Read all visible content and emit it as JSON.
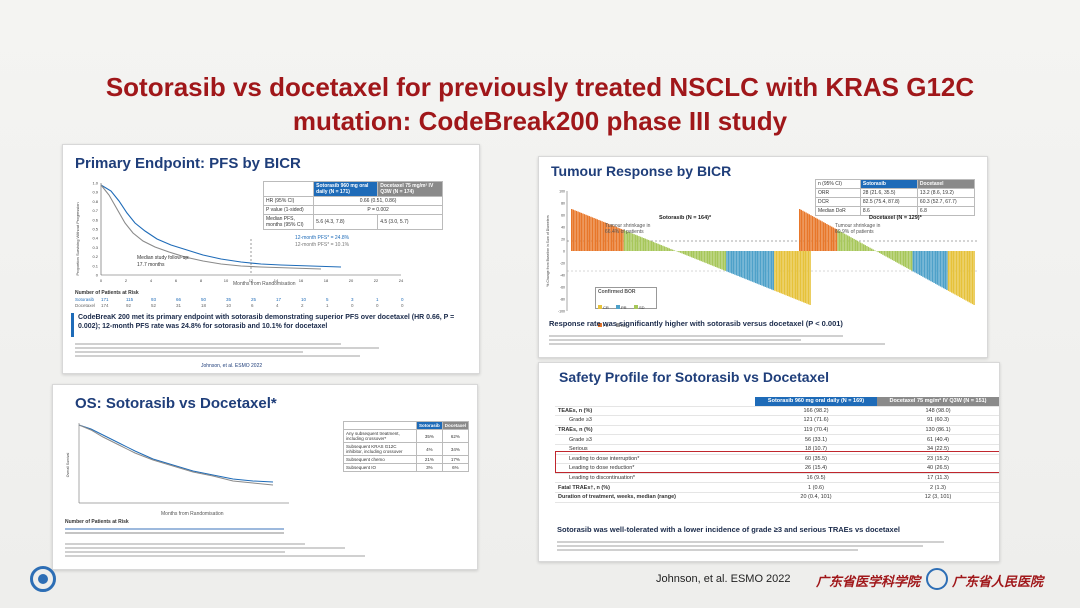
{
  "title_line1": "Sotorasib vs docetaxel for previously treated NSCLC with KRAS G12C",
  "title_line2": "mutation: CodeBreak200 phase III study",
  "pfs": {
    "title": "Primary Endpoint: PFS by BICR",
    "pfs12": "12-month PFS* = 24.8%",
    "pfs12b": "12-month PFS* = 10.1%",
    "median_label": "Median study follow-up:",
    "median_value": "17.7 months",
    "xlabel": "Months from Randomisation",
    "ylabel": "Proportion Surviving Without Progression",
    "yticks": [
      "1.0",
      "0.9",
      "0.8",
      "0.7",
      "0.6",
      "0.5",
      "0.4",
      "0.3",
      "0.2",
      "0.1",
      "0"
    ],
    "xticks": [
      "0",
      "2",
      "4",
      "6",
      "8",
      "10",
      "12",
      "14",
      "16",
      "18",
      "20",
      "22",
      "24"
    ],
    "risk_header": "Number of Patients at Risk",
    "risk_rows": [
      {
        "name": "Sotorasib",
        "values": [
          "171",
          "115",
          "93",
          "66",
          "50",
          "35",
          "25",
          "17",
          "10",
          "5",
          "3",
          "1",
          "0"
        ]
      },
      {
        "name": "Docetaxel",
        "values": [
          "174",
          "92",
          "52",
          "31",
          "18",
          "10",
          "6",
          "4",
          "2",
          "1",
          "0",
          "0",
          "0"
        ]
      }
    ],
    "table": {
      "h1": "Sotorasib 960 mg oral daily (N = 171)",
      "h2": "Docetaxel 75 mg/m² IV Q3W (N = 174)",
      "r1": "HR (95% CI)",
      "r1v": "0.66 (0.51, 0.86)",
      "r2": "P value (1-sided)",
      "r2v": "P = 0.002",
      "r3": "Median PFS, months (95% CI)",
      "r3a": "5.6 (4.3, 7.8)",
      "r3b": "4.5 (3.0, 5.7)"
    },
    "summary": "CodeBreaK 200 met its primary endpoint with sotorasib demonstrating superior PFS over docetaxel (HR 0.66, P = 0.002); 12-month PFS rate was 24.8% for sotorasib and 10.1% for docetaxel",
    "cite": "Johnson, et al. ESMO 2022"
  },
  "tumour": {
    "title": "Tumour Response by BICR",
    "label_s": "Sotorasib (N = 164)*",
    "label_d": "Docetaxel (N = 129)*",
    "shrink_s": "Tumour shrinkage in 66.4% of patients",
    "shrink_d": "Tumour shrinkage in 60.9% of patients",
    "ylabel": "% Change from Baseline in Sum of Diameters",
    "yticks": [
      "100",
      "80",
      "60",
      "40",
      "20",
      "0",
      "-20",
      "-40",
      "-60",
      "-80",
      "-100"
    ],
    "legend_title": "Confirmed BOR",
    "legend": [
      "CR",
      "PR",
      "SD",
      "PD",
      "NE"
    ],
    "table": {
      "h0": "n (95% CI)",
      "h1": "Sotorasib",
      "h2": "Docetaxel",
      "r1": "ORR",
      "r1a": "28 (21.6, 35.5)",
      "r1b": "13.2 (8.6, 19.2)",
      "r2": "DCR",
      "r2a": "82.5 (75.4, 87.8)",
      "r2b": "60.3 (52.7, 67.7)",
      "r3": "Median DoR",
      "r3a": "8.6",
      "r3b": "6.8"
    },
    "summary": "Response rate was significantly higher with sotorasib versus docetaxel (P < 0.001)"
  },
  "os": {
    "title": "OS: Sotorasib vs Docetaxel*",
    "xlabel": "Months from Randomisation",
    "ylabel": "Overall Survival",
    "risk_header": "Number of Patients at Risk",
    "rows": [
      {
        "label": "Any subsequent treatment, including crossover*",
        "s": "35%",
        "d": "62%"
      },
      {
        "label": "Subsequent KRAS G12C inhibitor, including crossover",
        "s": "4%",
        "d": "34%"
      },
      {
        "label": "Subsequent chemo",
        "s": "21%",
        "d": "17%"
      },
      {
        "label": "Subsequent IO",
        "s": "3%",
        "d": "6%"
      }
    ],
    "h1": "Sotorasib",
    "h2": "Docetaxel"
  },
  "safety": {
    "title": "Safety Profile for Sotorasib vs Docetaxel",
    "h1": "Sotorasib 960 mg oral daily (N = 169)",
    "h2": "Docetaxel 75 mg/m² IV Q3W (N = 151)",
    "rows": [
      {
        "label": "TEAEs, n (%)",
        "a": "166 (98.2)",
        "b": "148 (98.0)",
        "bold": true
      },
      {
        "label": "Grade ≥3",
        "a": "121 (71.6)",
        "b": "91 (60.3)",
        "bold": false
      },
      {
        "label": "TRAEs, n (%)",
        "a": "119 (70.4)",
        "b": "130 (86.1)",
        "bold": true
      },
      {
        "label": "Grade ≥3",
        "a": "56 (33.1)",
        "b": "61 (40.4)",
        "bold": false
      },
      {
        "label": "Serious",
        "a": "18 (10.7)",
        "b": "34 (22.5)",
        "bold": false
      },
      {
        "label": "Leading to dose interruption*",
        "a": "60 (35.5)",
        "b": "23 (15.2)",
        "bold": false
      },
      {
        "label": "Leading to dose reduction*",
        "a": "26 (15.4)",
        "b": "40 (26.5)",
        "bold": false
      },
      {
        "label": "Leading to discontinuation*",
        "a": "16 (9.5)",
        "b": "17 (11.3)",
        "bold": false
      },
      {
        "label": "Fatal TRAEs†, n (%)",
        "a": "1 (0.6)",
        "b": "2 (1.3)",
        "bold": true
      },
      {
        "label": "Duration of treatment, weeks, median (range)",
        "a": "20 (0.4, 101)",
        "b": "12 (3, 101)",
        "bold": true
      }
    ],
    "summary": "Sotorasib was well-tolerated with a lower incidence of grade ≥3 and serious TRAEs vs docetaxel"
  },
  "footer": {
    "cite": "Johnson, et al. ESMO 2022",
    "logo1": "广东省医学科学院",
    "logo2": "广东省人民医院"
  },
  "colors": {
    "title": "#a0171a",
    "panel_title": "#1f3e7a",
    "sotorasib": "#1e6bb8",
    "docetaxel": "#8a8a8a"
  }
}
